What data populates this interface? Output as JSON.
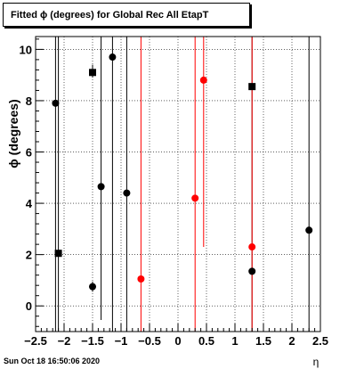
{
  "title": "Fitted ϕ (degrees) for Global Rec All EtapT",
  "footer": "Sun Oct 18 16:50:06 2020",
  "chart_data": {
    "type": "scatter",
    "title": "Fitted ϕ (degrees) for Global Rec All EtapT",
    "xlabel": "η",
    "ylabel": "ϕ (degrees)",
    "xlim": [
      -2.5,
      2.5
    ],
    "ylim": [
      -1.0,
      10.5
    ],
    "grid": true,
    "x_ticks": [
      -2.5,
      -2,
      -1.5,
      -1,
      -0.5,
      0,
      0.5,
      1,
      1.5,
      2,
      2.5
    ],
    "x_tick_labels": [
      "−2.5",
      "−2",
      "−1.5",
      "−1",
      "−0.5",
      "0",
      "0.5",
      "1",
      "1.5",
      "2",
      "2.5"
    ],
    "y_ticks": [
      0,
      2,
      4,
      6,
      8,
      10
    ],
    "y_tick_labels": [
      "0",
      "2",
      "4",
      "6",
      "8",
      "10"
    ],
    "series": [
      {
        "marker": "circle",
        "color": "#000000",
        "points": [
          {
            "x": -2.15,
            "y": 7.9,
            "ylo": -1.0,
            "yhi": 10.5
          },
          {
            "x": -1.5,
            "y": 0.75,
            "ylo": 0.55,
            "yhi": 0.95
          },
          {
            "x": -1.35,
            "y": 4.65,
            "ylo": -0.55,
            "yhi": 10.5
          },
          {
            "x": -1.15,
            "y": 9.7,
            "ylo": -1.0,
            "yhi": 10.5
          },
          {
            "x": -0.9,
            "y": 4.4,
            "ylo": -1.0,
            "yhi": 10.5
          },
          {
            "x": 1.3,
            "y": 1.35,
            "ylo": 1.2,
            "yhi": 1.5
          },
          {
            "x": 2.3,
            "y": 2.95,
            "ylo": -1.0,
            "yhi": 10.5
          }
        ]
      },
      {
        "marker": "square",
        "color": "#000000",
        "points": [
          {
            "x": -2.1,
            "y": 2.05,
            "ylo": -1.0,
            "yhi": 10.5
          },
          {
            "x": -1.5,
            "y": 9.1,
            "ylo": 8.9,
            "yhi": 9.4
          },
          {
            "x": 1.3,
            "y": 8.55,
            "ylo": -1.0,
            "yhi": 10.5
          }
        ]
      },
      {
        "marker": "circle",
        "color": "#ff0000",
        "points": [
          {
            "x": -0.65,
            "y": 1.05,
            "ylo": -1.0,
            "yhi": 10.5
          },
          {
            "x": 0.3,
            "y": 4.2,
            "ylo": -1.0,
            "yhi": 10.5
          },
          {
            "x": 0.45,
            "y": 8.8,
            "ylo": 2.3,
            "yhi": 10.5
          },
          {
            "x": 1.3,
            "y": 2.3,
            "ylo": -1.0,
            "yhi": 10.5
          }
        ]
      }
    ]
  }
}
